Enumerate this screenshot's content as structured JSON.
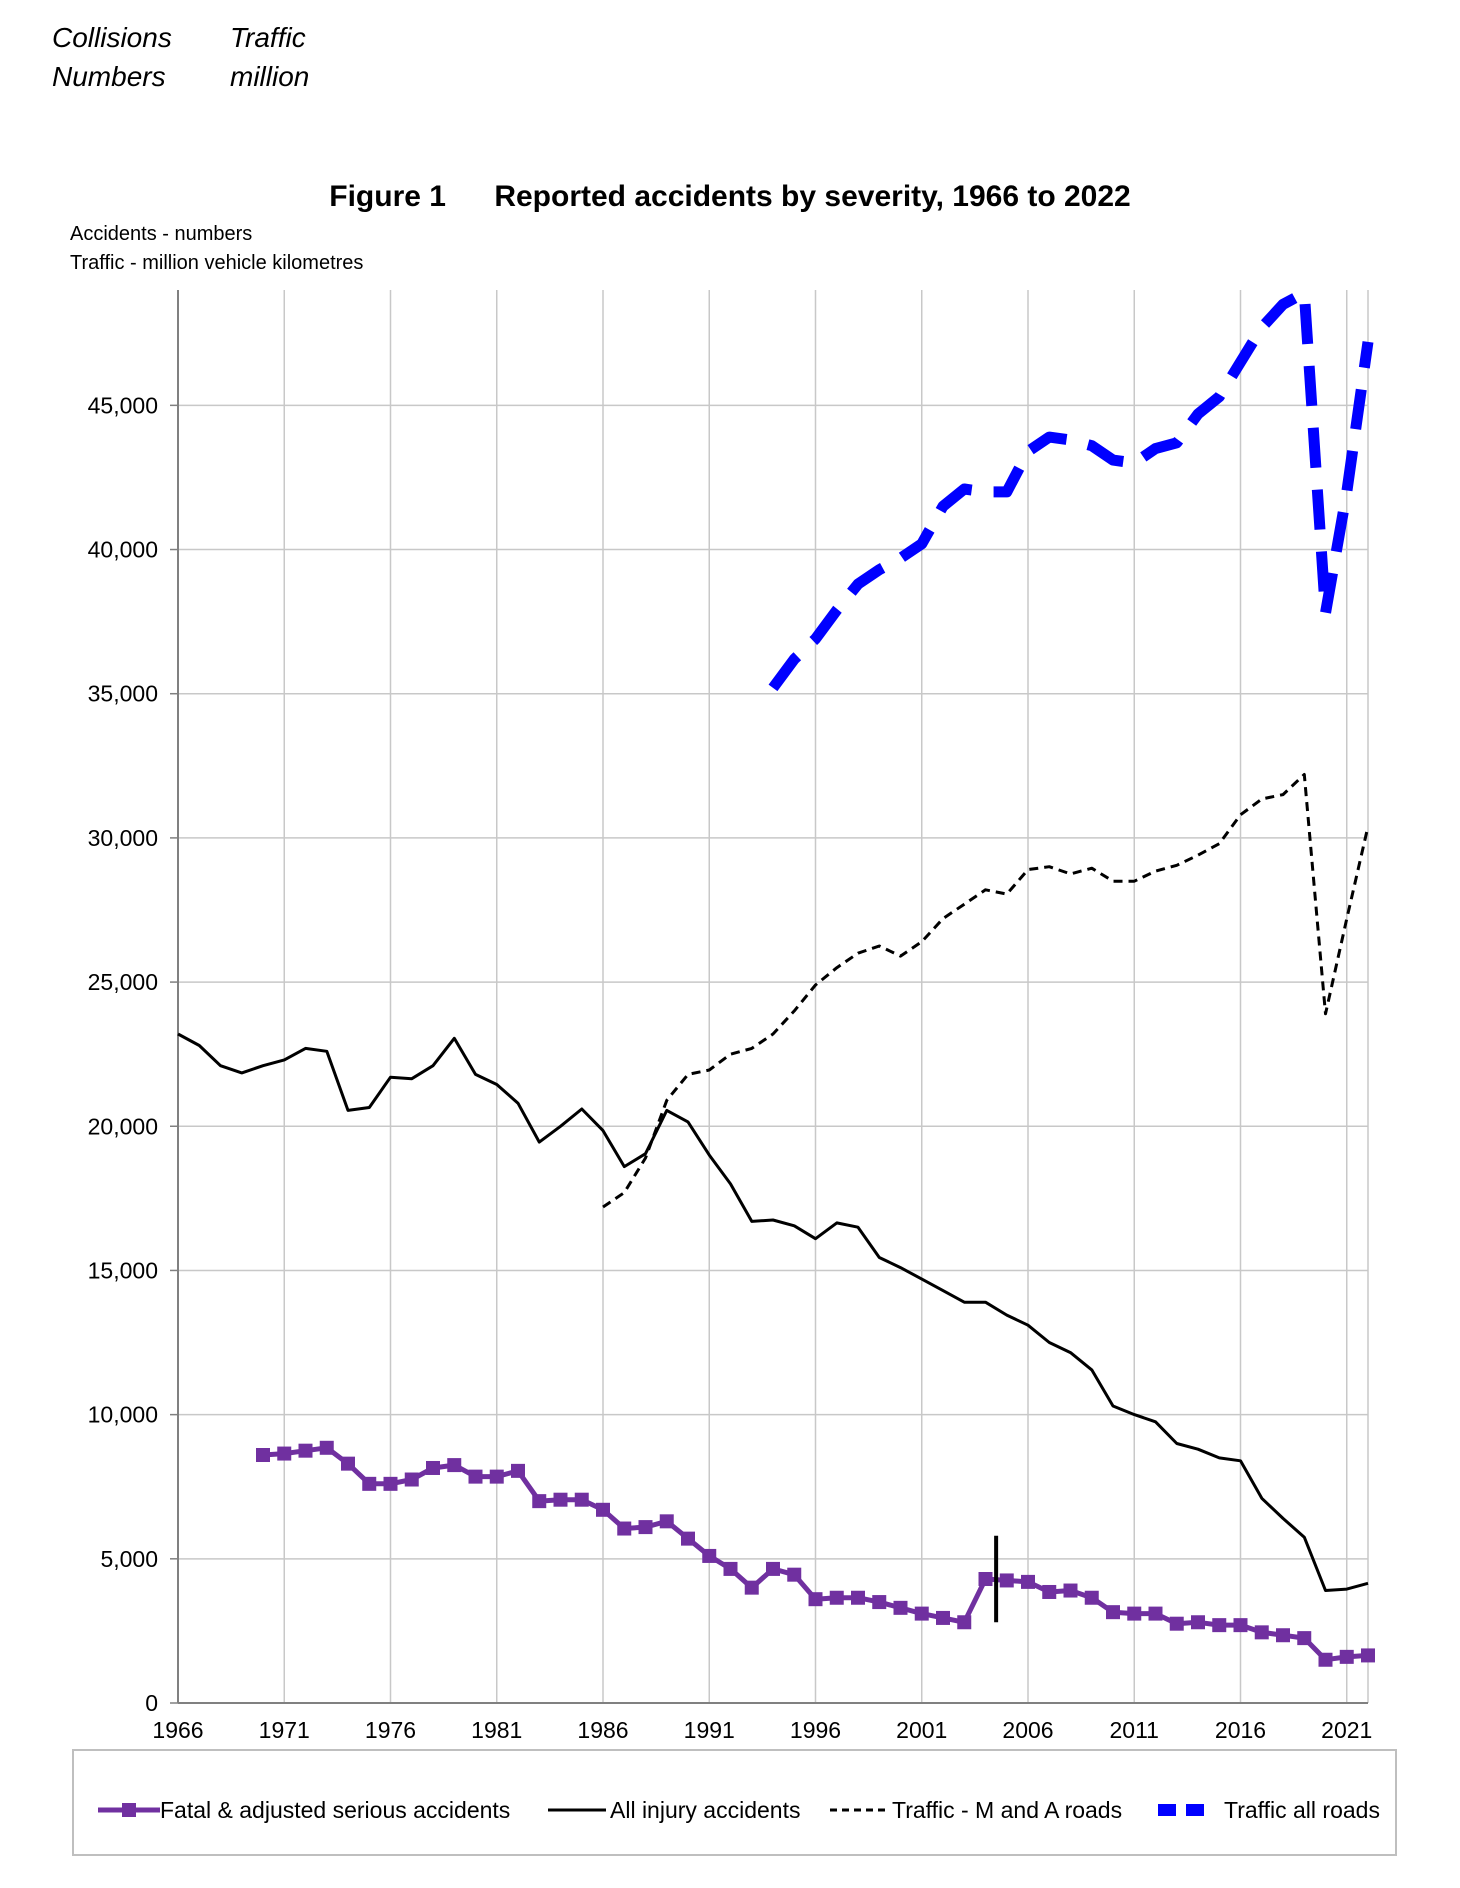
{
  "header": {
    "col1_line1": "Collisions",
    "col1_line2": "Numbers",
    "col2_line1": "Traffic",
    "col2_line2": "million"
  },
  "chart_data": {
    "type": "line",
    "figure_label": "Figure 1",
    "title": "Reported accidents by severity, 1966 to 2022",
    "units_line1": "Accidents - numbers",
    "units_line2": "Traffic -  million vehicle kilometres",
    "xlabel": "",
    "ylabel": "",
    "xlim": [
      1966,
      2022
    ],
    "ylim": [
      0,
      49000
    ],
    "x_ticks": [
      1966,
      1971,
      1976,
      1981,
      1986,
      1991,
      1996,
      2001,
      2006,
      2011,
      2016,
      2021
    ],
    "y_ticks": [
      0,
      5000,
      10000,
      15000,
      20000,
      25000,
      30000,
      35000,
      40000,
      45000
    ],
    "y_tick_labels": [
      "0",
      "5,000",
      "10,000",
      "15,000",
      "20,000",
      "25,000",
      "30,000",
      "35,000",
      "40,000",
      "45,000"
    ],
    "grid": true,
    "legend_position": "bottom",
    "annotations": [
      {
        "type": "vertical-break-marker",
        "x": 2004.5,
        "y_range": [
          2800,
          5800
        ]
      }
    ],
    "series": [
      {
        "name": "Fatal & adjusted serious accidents",
        "style": "solid-square-markers",
        "color": "#7030A0",
        "x": [
          1970,
          1971,
          1972,
          1973,
          1974,
          1975,
          1976,
          1977,
          1978,
          1979,
          1980,
          1981,
          1982,
          1983,
          1984,
          1985,
          1986,
          1987,
          1988,
          1989,
          1990,
          1991,
          1992,
          1993,
          1994,
          1995,
          1996,
          1997,
          1998,
          1999,
          2000,
          2001,
          2002,
          2003,
          2004,
          2005,
          2006,
          2007,
          2008,
          2009,
          2010,
          2011,
          2012,
          2013,
          2014,
          2015,
          2016,
          2017,
          2018,
          2019,
          2020,
          2021,
          2022
        ],
        "values": [
          8600,
          8650,
          8750,
          8850,
          8300,
          7600,
          7600,
          7750,
          8150,
          8250,
          7850,
          7850,
          8050,
          7000,
          7050,
          7050,
          6700,
          6050,
          6100,
          6300,
          5700,
          5100,
          4650,
          4000,
          4650,
          4450,
          3600,
          3650,
          3650,
          3500,
          3300,
          3100,
          2950,
          2800,
          4300,
          4250,
          4200,
          3850,
          3900,
          3650,
          3150,
          3100,
          3100,
          2750,
          2800,
          2700,
          2700,
          2450,
          2350,
          2250,
          1500,
          1600,
          1650
        ]
      },
      {
        "name": "All injury accidents",
        "style": "solid",
        "color": "#000000",
        "x": [
          1966,
          1967,
          1968,
          1969,
          1970,
          1971,
          1972,
          1973,
          1974,
          1975,
          1976,
          1977,
          1978,
          1979,
          1980,
          1981,
          1982,
          1983,
          1984,
          1985,
          1986,
          1987,
          1988,
          1989,
          1990,
          1991,
          1992,
          1993,
          1994,
          1995,
          1996,
          1997,
          1998,
          1999,
          2000,
          2001,
          2002,
          2003,
          2004,
          2005,
          2006,
          2007,
          2008,
          2009,
          2010,
          2011,
          2012,
          2013,
          2014,
          2015,
          2016,
          2017,
          2018,
          2019,
          2020,
          2021,
          2022
        ],
        "values": [
          23200,
          22800,
          22100,
          21850,
          22100,
          22300,
          22700,
          22600,
          20550,
          20650,
          21700,
          21650,
          22100,
          23050,
          21800,
          21450,
          20800,
          19450,
          20000,
          20600,
          19850,
          18600,
          19050,
          20550,
          20150,
          19000,
          18000,
          16700,
          16750,
          16550,
          16100,
          16650,
          16500,
          15450,
          15100,
          14700,
          14300,
          13900,
          13900,
          13450,
          13100,
          12500,
          12150,
          11550,
          10300,
          10000,
          9750,
          9000,
          8800,
          8500,
          8400,
          7100,
          6400,
          5750,
          3900,
          3950,
          4150
        ]
      },
      {
        "name": "Traffic - M and A roads",
        "style": "dashed",
        "color": "#000000",
        "x": [
          1986,
          1987,
          1988,
          1989,
          1990,
          1991,
          1992,
          1993,
          1994,
          1995,
          1996,
          1997,
          1998,
          1999,
          2000,
          2001,
          2002,
          2003,
          2004,
          2005,
          2006,
          2007,
          2008,
          2009,
          2010,
          2011,
          2012,
          2013,
          2014,
          2015,
          2016,
          2017,
          2018,
          2019,
          2020,
          2021,
          2022
        ],
        "values": [
          17200,
          17700,
          18900,
          20900,
          21800,
          21950,
          22500,
          22700,
          23200,
          24000,
          24900,
          25500,
          26000,
          26250,
          25900,
          26400,
          27200,
          27700,
          28200,
          28050,
          28900,
          29000,
          28750,
          28950,
          28500,
          28500,
          28850,
          29050,
          29400,
          29800,
          30800,
          31350,
          31500,
          32200,
          23900,
          27200,
          30400
        ]
      },
      {
        "name": "Traffic all roads",
        "style": "thick-dashed",
        "color": "#0000FF",
        "x": [
          1994,
          1995,
          1996,
          1997,
          1998,
          1999,
          2000,
          2001,
          2002,
          2003,
          2004,
          2005,
          2006,
          2007,
          2008,
          2009,
          2010,
          2011,
          2012,
          2013,
          2014,
          2015,
          2016,
          2017,
          2018,
          2019,
          2020,
          2021,
          2022
        ],
        "values": [
          35200,
          36200,
          36900,
          37900,
          38800,
          39300,
          39700,
          40200,
          41500,
          42100,
          42000,
          42000,
          43400,
          43900,
          43800,
          43600,
          43100,
          43000,
          43500,
          43700,
          44700,
          45300,
          46500,
          47700,
          48500,
          48900,
          37800,
          42000,
          47200
        ]
      }
    ]
  }
}
